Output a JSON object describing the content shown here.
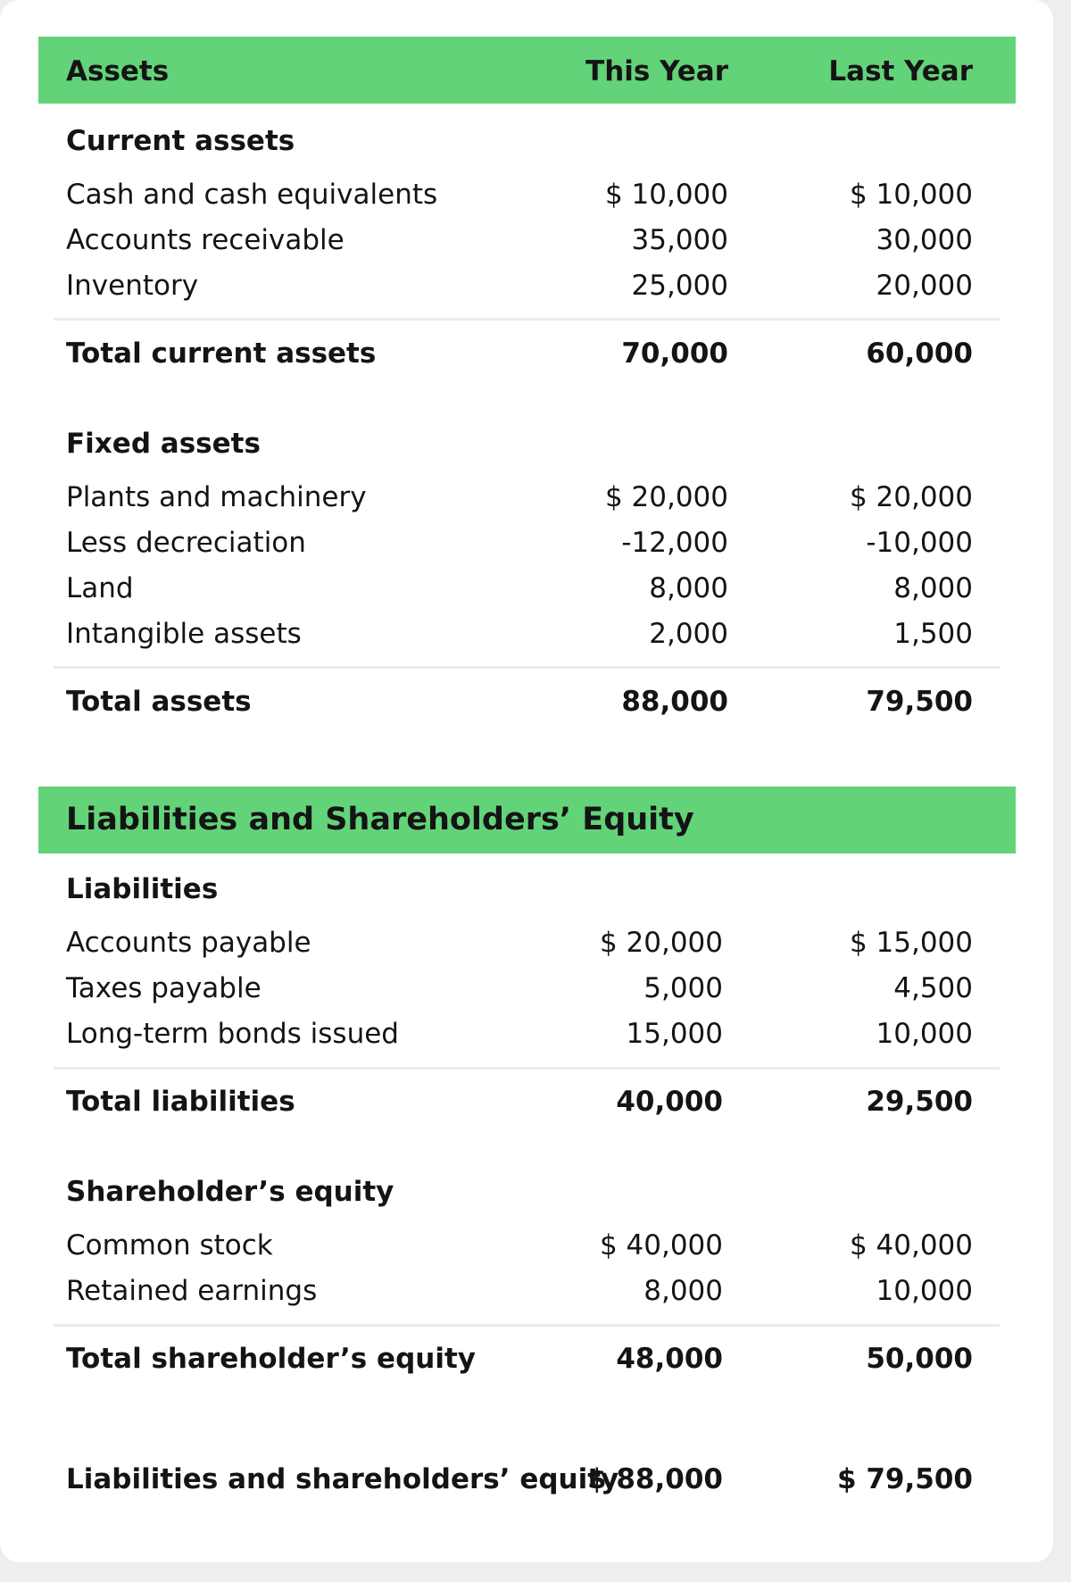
{
  "assets_header": {
    "label": "Assets",
    "this_year": "This Year",
    "last_year": "Last Year"
  },
  "current_assets": {
    "title": "Current assets",
    "rows": [
      {
        "label": "Cash and cash equivalents",
        "this_year": "$ 10,000",
        "last_year": "$ 10,000"
      },
      {
        "label": "Accounts receivable",
        "this_year": "35,000",
        "last_year": "30,000"
      },
      {
        "label": "Inventory",
        "this_year": "25,000",
        "last_year": "20,000"
      }
    ],
    "total": {
      "label": "Total current assets",
      "this_year": "70,000",
      "last_year": "60,000"
    }
  },
  "fixed_assets": {
    "title": "Fixed assets",
    "rows": [
      {
        "label": "Plants and machinery",
        "this_year": "$ 20,000",
        "last_year": "$ 20,000"
      },
      {
        "label": "Less decreciation",
        "this_year": "-12,000",
        "last_year": "-10,000"
      },
      {
        "label": "Land",
        "this_year": "8,000",
        "last_year": "8,000"
      },
      {
        "label": "Intangible assets",
        "this_year": "2,000",
        "last_year": "1,500"
      }
    ],
    "total": {
      "label": "Total assets",
      "this_year": "88,000",
      "last_year": "79,500"
    }
  },
  "liab_header": {
    "label": "Liabilities and Shareholders’ Equity"
  },
  "liabilities": {
    "title": "Liabilities",
    "rows": [
      {
        "label": "Accounts payable",
        "this_year": "$ 20,000",
        "last_year": "$ 15,000"
      },
      {
        "label": "Taxes payable",
        "this_year": "5,000",
        "last_year": "4,500"
      },
      {
        "label": "Long-term bonds issued",
        "this_year": "15,000",
        "last_year": "10,000"
      }
    ],
    "total": {
      "label": "Total liabilities",
      "this_year": "40,000",
      "last_year": "29,500"
    }
  },
  "equity": {
    "title": "Shareholder’s equity",
    "rows": [
      {
        "label": "Common stock",
        "this_year": "$ 40,000",
        "last_year": "$ 40,000"
      },
      {
        "label": "Retained earnings",
        "this_year": "8,000",
        "last_year": "10,000"
      }
    ],
    "total": {
      "label": "Total shareholder’s equity",
      "this_year": "48,000",
      "last_year": "50,000"
    }
  },
  "grand_total": {
    "label": "Liabilities and shareholders’ equity",
    "this_year": "$ 88,000",
    "last_year": "$ 79,500"
  },
  "colors": {
    "header_green": "#63d37a"
  }
}
